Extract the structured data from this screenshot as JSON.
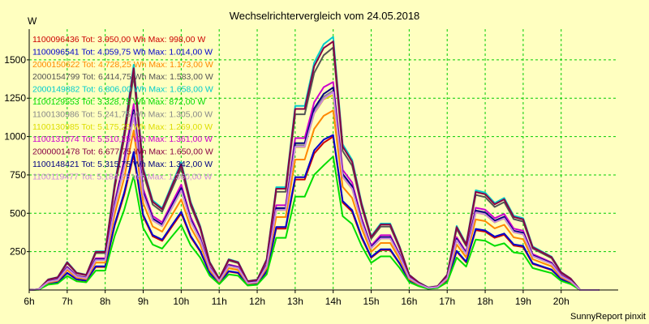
{
  "chart_data": {
    "type": "line",
    "title": "Wechselrichtervergleich vom 24.05.2018",
    "ylabel": "W",
    "footer": "SunnyReport pinxit",
    "grid": true,
    "legend_position": "top-left",
    "background_color": "#ffffc0",
    "grid_color": "#00cc00",
    "xlim": [
      6,
      21.5
    ],
    "ylim": [
      0,
      1700
    ],
    "xticks": [
      6,
      7,
      8,
      9,
      10,
      11,
      12,
      13,
      14,
      15,
      16,
      17,
      18,
      19,
      20
    ],
    "xtick_labels": [
      "6h",
      "7h",
      "8h",
      "9h",
      "10h",
      "11h",
      "12h",
      "13h",
      "14h",
      "15h",
      "16h",
      "17h",
      "18h",
      "19h",
      "20h"
    ],
    "yticks": [
      250,
      500,
      750,
      1000,
      1250,
      1500
    ],
    "ytick_labels": [
      "250",
      "500",
      "750",
      "1000",
      "1250",
      "1500"
    ],
    "x": [
      6.0,
      6.25,
      6.5,
      6.75,
      7.0,
      7.25,
      7.5,
      7.75,
      8.0,
      8.25,
      8.5,
      8.75,
      9.0,
      9.25,
      9.5,
      9.75,
      10.0,
      10.25,
      10.5,
      10.75,
      11.0,
      11.25,
      11.5,
      11.75,
      12.0,
      12.25,
      12.5,
      12.75,
      13.0,
      13.25,
      13.5,
      13.75,
      14.0,
      14.25,
      14.5,
      14.75,
      15.0,
      15.25,
      15.5,
      15.75,
      16.0,
      16.25,
      16.5,
      16.75,
      17.0,
      17.25,
      17.5,
      17.75,
      18.0,
      18.25,
      18.5,
      18.75,
      19.0,
      19.25,
      19.5,
      19.75,
      20.0,
      20.25,
      20.5,
      20.75,
      21.0
    ],
    "series": [
      {
        "name": "1100096436",
        "tot": "Tot: 3.950,00 Wh",
        "max": "Max: 998,00 W",
        "color": "#cc0000",
        "values": [
          0,
          3,
          42,
          50,
          110,
          68,
          60,
          150,
          150,
          420,
          620,
          880,
          480,
          350,
          320,
          410,
          500,
          345,
          250,
          110,
          45,
          120,
          110,
          35,
          40,
          120,
          400,
          400,
          720,
          720,
          890,
          960,
          1000,
          570,
          510,
          340,
          210,
          260,
          260,
          170,
          60,
          30,
          10,
          15,
          60,
          250,
          180,
          390,
          380,
          340,
          360,
          290,
          280,
          170,
          150,
          130,
          70,
          45,
          0,
          0,
          0
        ]
      },
      {
        "name": "1100096541",
        "tot": "Tot: 4.059,75 Wh",
        "max": "Max: 1.014,00 W",
        "color": "#0000cc",
        "values": [
          0,
          3,
          43,
          52,
          112,
          70,
          62,
          154,
          154,
          430,
          635,
          900,
          490,
          358,
          328,
          420,
          510,
          352,
          256,
          112,
          46,
          123,
          113,
          36,
          42,
          123,
          410,
          410,
          735,
          735,
          910,
          980,
          1010,
          580,
          520,
          348,
          215,
          265,
          265,
          173,
          62,
          31,
          10,
          15,
          62,
          255,
          185,
          398,
          388,
          348,
          368,
          297,
          287,
          174,
          153,
          133,
          72,
          46,
          0,
          0,
          0
        ]
      },
      {
        "name": "2000150622",
        "tot": "Tot: 4.728,25 Wh",
        "max": "Max: 1.173,00 W",
        "color": "#ff8800",
        "values": [
          0,
          4,
          48,
          60,
          130,
          80,
          70,
          178,
          178,
          495,
          730,
          1040,
          565,
          414,
          380,
          485,
          590,
          407,
          296,
          130,
          53,
          142,
          130,
          41,
          48,
          142,
          475,
          475,
          850,
          850,
          1050,
          1135,
          1170,
          672,
          600,
          402,
          248,
          306,
          306,
          200,
          71,
          36,
          12,
          17,
          71,
          296,
          213,
          460,
          449,
          402,
          425,
          343,
          331,
          201,
          177,
          154,
          83,
          53,
          0,
          0,
          0
        ]
      },
      {
        "name": "2000154799",
        "tot": "Tot: 6.414,75 Wh",
        "max": "Max: 1.583,00 W",
        "color": "#555555",
        "values": [
          0,
          5,
          66,
          80,
          175,
          108,
          95,
          240,
          240,
          665,
          985,
          1400,
          760,
          557,
          510,
          653,
          795,
          548,
          398,
          175,
          72,
          192,
          175,
          55,
          64,
          192,
          640,
          640,
          1145,
          1145,
          1415,
          1530,
          1580,
          906,
          810,
          541,
          334,
          413,
          413,
          270,
          95,
          48,
          16,
          24,
          95,
          398,
          287,
          620,
          605,
          541,
          573,
          462,
          446,
          271,
          239,
          207,
          111,
          72,
          0,
          0,
          0
        ]
      },
      {
        "name": "2000149882",
        "tot": "Tot: 6.806,00 Wh",
        "max": "Max: 1.658,00 W",
        "color": "#00cccc",
        "values": [
          0,
          5,
          69,
          84,
          183,
          113,
          100,
          252,
          252,
          697,
          1030,
          1468,
          797,
          584,
          534,
          684,
          833,
          574,
          417,
          183,
          75,
          201,
          183,
          58,
          67,
          201,
          670,
          670,
          1200,
          1200,
          1482,
          1602,
          1650,
          949,
          848,
          567,
          350,
          433,
          433,
          283,
          100,
          50,
          17,
          25,
          100,
          417,
          301,
          650,
          634,
          567,
          600,
          484,
          467,
          284,
          250,
          217,
          117,
          75,
          0,
          0,
          0
        ]
      },
      {
        "name": "1100129553",
        "tot": "Tot: 3.328,75 Wh",
        "max": "Max: 872,00 W",
        "color": "#00dd00",
        "values": [
          0,
          2,
          35,
          42,
          92,
          57,
          50,
          126,
          126,
          353,
          522,
          744,
          404,
          296,
          270,
          347,
          422,
          291,
          211,
          93,
          38,
          102,
          93,
          29,
          34,
          102,
          340,
          340,
          608,
          608,
          751,
          812,
          870,
          481,
          430,
          287,
          177,
          219,
          219,
          143,
          51,
          25,
          8,
          13,
          50,
          211,
          152,
          329,
          321,
          287,
          304,
          245,
          237,
          143,
          126,
          110,
          59,
          38,
          0,
          0,
          0
        ]
      },
      {
        "name": "1100130986",
        "tot": "Tot: 5.241,75 Wh",
        "max": "Max: 1.305,00 W",
        "color": "#888888",
        "values": [
          0,
          4,
          54,
          66,
          144,
          89,
          78,
          197,
          197,
          548,
          811,
          1155,
          627,
          459,
          420,
          538,
          655,
          452,
          328,
          144,
          59,
          158,
          144,
          46,
          53,
          158,
          527,
          527,
          944,
          944,
          1166,
          1260,
          1300,
          746,
          667,
          446,
          275,
          340,
          340,
          222,
          79,
          39,
          13,
          20,
          78,
          328,
          237,
          511,
          499,
          446,
          472,
          381,
          367,
          223,
          197,
          171,
          92,
          59,
          0,
          0,
          0
        ]
      },
      {
        "name": "1100130985",
        "tot": "Tot: 5.175,25 Wh",
        "max": "Max: 1.269,00 W",
        "color": "#dddd00",
        "values": [
          0,
          4,
          53,
          65,
          142,
          87,
          77,
          194,
          194,
          540,
          800,
          1140,
          618,
          453,
          415,
          531,
          646,
          446,
          323,
          142,
          58,
          156,
          142,
          45,
          52,
          156,
          520,
          520,
          931,
          931,
          1150,
          1243,
          1270,
          736,
          658,
          440,
          271,
          335,
          335,
          219,
          78,
          39,
          13,
          20,
          77,
          323,
          234,
          504,
          492,
          440,
          466,
          376,
          362,
          220,
          194,
          169,
          91,
          58,
          0,
          0,
          0
        ]
      },
      {
        "name": "1100131074",
        "tot": "Tot: 5.510,25 Wh",
        "max": "Max: 1.361,00 W",
        "color": "#cc00cc",
        "values": [
          0,
          4,
          56,
          69,
          151,
          93,
          82,
          207,
          207,
          574,
          851,
          1212,
          659,
          482,
          441,
          564,
          687,
          474,
          344,
          151,
          62,
          166,
          151,
          48,
          56,
          166,
          552,
          552,
          990,
          990,
          1223,
          1322,
          1355,
          783,
          700,
          468,
          289,
          357,
          357,
          233,
          83,
          41,
          14,
          21,
          82,
          344,
          248,
          536,
          523,
          468,
          495,
          400,
          386,
          234,
          207,
          179,
          97,
          62,
          0,
          0,
          0
        ]
      },
      {
        "name": "2000001478",
        "tot": "Tot: 6.677,75 Wh",
        "max": "Max: 1.650,00 W",
        "color": "#880044",
        "values": [
          0,
          5,
          68,
          83,
          180,
          111,
          98,
          248,
          248,
          685,
          1015,
          1445,
          785,
          575,
          526,
          673,
          820,
          565,
          410,
          180,
          74,
          198,
          180,
          57,
          66,
          198,
          660,
          660,
          1180,
          1180,
          1458,
          1577,
          1620,
          935,
          835,
          558,
          345,
          426,
          426,
          279,
          98,
          49,
          16,
          25,
          98,
          410,
          296,
          639,
          624,
          558,
          591,
          476,
          460,
          279,
          246,
          214,
          115,
          74,
          0,
          0,
          0
        ]
      },
      {
        "name": "1100148421",
        "tot": "Tot: 5.315,75 Wh",
        "max": "Max: 1.342,00 W",
        "color": "#000080",
        "values": [
          0,
          4,
          55,
          67,
          146,
          90,
          79,
          200,
          200,
          555,
          823,
          1172,
          636,
          466,
          426,
          546,
          664,
          458,
          333,
          146,
          60,
          161,
          146,
          46,
          54,
          161,
          534,
          534,
          957,
          957,
          1183,
          1278,
          1320,
          757,
          676,
          452,
          279,
          345,
          345,
          225,
          80,
          40,
          13,
          20,
          79,
          333,
          240,
          518,
          506,
          452,
          478,
          386,
          373,
          226,
          200,
          173,
          93,
          60,
          0,
          0,
          0
        ]
      },
      {
        "name": "1100119477",
        "tot": "Tot: 5.184,25 Wh",
        "max": "Max: 1.360,00 W",
        "color": "#cc88dd",
        "values": [
          0,
          4,
          54,
          65,
          142,
          88,
          77,
          195,
          195,
          541,
          802,
          1142,
          620,
          454,
          416,
          532,
          648,
          447,
          325,
          143,
          58,
          157,
          143,
          45,
          52,
          156,
          521,
          521,
          933,
          933,
          1153,
          1246,
          1290,
          738,
          660,
          441,
          272,
          336,
          336,
          220,
          78,
          39,
          13,
          20,
          77,
          324,
          234,
          505,
          493,
          441,
          467,
          377,
          363,
          220,
          195,
          169,
          91,
          58,
          0,
          0,
          0
        ]
      }
    ]
  }
}
